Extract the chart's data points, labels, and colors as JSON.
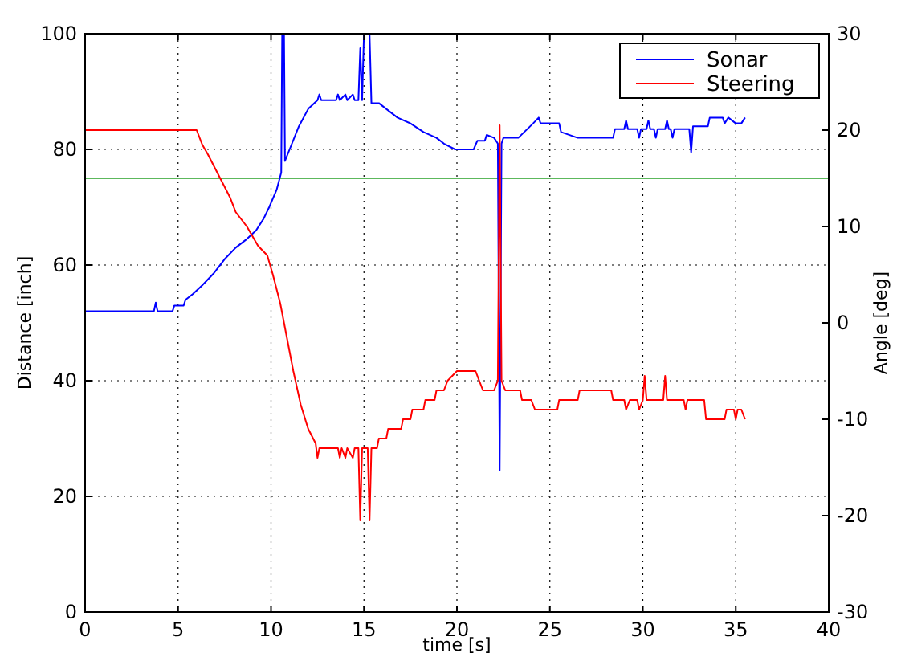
{
  "chart_data": {
    "type": "line",
    "xlabel": "time [s]",
    "ylabel": "Distance [inch]",
    "y2label": "Angle [deg]",
    "xlim": [
      0,
      40
    ],
    "xticks": [
      0,
      5,
      10,
      15,
      20,
      25,
      30,
      35,
      40
    ],
    "ylim": [
      0,
      100
    ],
    "yticks": [
      0,
      20,
      40,
      60,
      80,
      100
    ],
    "y2lim": [
      -30,
      30
    ],
    "y2ticks": [
      -30,
      -20,
      -10,
      0,
      10,
      20,
      30
    ],
    "grid": true,
    "legend": "top right",
    "ref_lines": [
      {
        "axis": "y",
        "value": 75,
        "color": "#5cb85c"
      }
    ],
    "series": [
      {
        "name": "Sonar",
        "color": "#0000ff",
        "x": [
          0,
          3.7,
          3.8,
          3.9,
          4.7,
          4.8,
          5.3,
          5.4,
          5.8,
          6.3,
          6.9,
          7.5,
          8.1,
          8.7,
          9.2,
          9.6,
          9.9,
          10.3,
          10.55,
          10.6,
          10.7,
          10.75,
          11.0,
          11.5,
          12.0,
          12.5,
          12.6,
          12.7,
          13.5,
          13.6,
          13.7,
          14.0,
          14.1,
          14.4,
          14.5,
          14.7,
          14.8,
          14.9,
          15.0,
          15.3,
          15.4,
          15.8,
          16.2,
          16.8,
          17.5,
          18.2,
          18.9,
          19.3,
          19.9,
          20.9,
          21.1,
          21.5,
          21.6,
          22.0,
          22.2,
          22.3,
          22.4,
          22.5,
          23.3,
          24.1,
          24.4,
          24.5,
          25.5,
          25.6,
          26.5,
          28.4,
          28.5,
          29.0,
          29.1,
          29.2,
          29.7,
          29.8,
          29.9,
          30.2,
          30.3,
          30.4,
          30.6,
          30.7,
          30.8,
          31.2,
          31.3,
          31.4,
          31.5,
          31.6,
          31.7,
          32.5,
          32.6,
          32.7,
          33.5,
          33.6,
          34.3,
          34.4,
          34.6,
          35.0,
          35.3,
          35.5
        ],
        "values": [
          52,
          52,
          53.5,
          52,
          52,
          53,
          53,
          54,
          55,
          56.5,
          58.5,
          61,
          63,
          64.5,
          66,
          68,
          70,
          73,
          76,
          100,
          100,
          78,
          80,
          84,
          87,
          88.5,
          89.5,
          88.5,
          88.5,
          89.5,
          88.5,
          89.5,
          88.5,
          89.5,
          88.5,
          88.5,
          97.5,
          88.5,
          100,
          100,
          88,
          88,
          87,
          85.5,
          84.5,
          83,
          82,
          81,
          80,
          80,
          81.5,
          81.5,
          82.5,
          82,
          81,
          24.5,
          81,
          82,
          82,
          84.5,
          85.5,
          84.5,
          84.5,
          83,
          82,
          82,
          83.5,
          83.5,
          85,
          83.5,
          83.5,
          82,
          83.5,
          83.5,
          85,
          83.5,
          83.5,
          82,
          83.5,
          83.5,
          85,
          83.5,
          83.5,
          82,
          83.5,
          83.5,
          79.5,
          84,
          84,
          85.5,
          85.5,
          84.5,
          85.5,
          84.5,
          84.5,
          85.5
        ]
      },
      {
        "name": "Steering",
        "color": "#ff0000",
        "axis": "y2",
        "x": [
          0,
          6.0,
          6.3,
          6.6,
          7.0,
          7.4,
          7.8,
          8.1,
          8.7,
          9.3,
          9.8,
          10.1,
          10.5,
          10.8,
          11.2,
          11.6,
          12.0,
          12.4,
          12.5,
          12.6,
          13.6,
          13.7,
          13.8,
          14.0,
          14.1,
          14.4,
          14.5,
          14.7,
          14.8,
          14.9,
          15.2,
          15.3,
          15.4,
          15.7,
          15.8,
          16.2,
          16.3,
          17.0,
          17.1,
          17.5,
          17.6,
          18.2,
          18.3,
          18.8,
          18.9,
          19.3,
          19.5,
          20.0,
          21.0,
          21.2,
          21.4,
          22.0,
          22.2,
          22.3,
          22.4,
          22.6,
          23.4,
          23.5,
          24.0,
          24.2,
          25.4,
          25.5,
          26.5,
          26.6,
          28.3,
          28.4,
          29.0,
          29.1,
          29.3,
          29.7,
          29.8,
          30.0,
          30.1,
          30.2,
          31.1,
          31.2,
          31.3,
          32.2,
          32.3,
          32.4,
          33.3,
          33.4,
          34.4,
          34.5,
          34.9,
          35.0,
          35.1,
          35.3,
          35.5
        ],
        "values": [
          20,
          20,
          18.5,
          17.5,
          16,
          14.5,
          13,
          11.5,
          10,
          8,
          7,
          5,
          2,
          -1,
          -5,
          -8.5,
          -11,
          -12.5,
          -14,
          -13,
          -13,
          -14,
          -13,
          -14,
          -13,
          -14,
          -13,
          -13,
          -20.5,
          -13,
          -13,
          -20.5,
          -13,
          -13,
          -12,
          -12,
          -11,
          -11,
          -10,
          -10,
          -9,
          -9,
          -8,
          -8,
          -7,
          -7,
          -6,
          -5,
          -5,
          -6,
          -7,
          -7,
          -6,
          20.5,
          -6,
          -7,
          -7,
          -8,
          -8,
          -9,
          -9,
          -8,
          -8,
          -7,
          -7,
          -8,
          -8,
          -9,
          -8,
          -8,
          -9,
          -8,
          -5.5,
          -8,
          -8,
          -5.5,
          -8,
          -8,
          -9,
          -8,
          -8,
          -10,
          -10,
          -9,
          -9,
          -10,
          -9,
          -9,
          -10
        ]
      }
    ]
  }
}
